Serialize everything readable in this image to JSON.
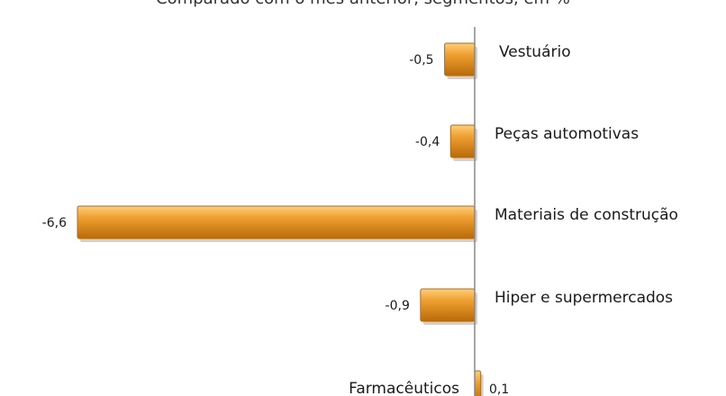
{
  "chart_data": {
    "type": "bar",
    "orientation": "horizontal",
    "subtitle": "Comparado com o mês anterior, segmentos, em %",
    "categories": [
      "Vestuário",
      "Peças automotivas",
      "Materiais de construção",
      "Hiper e supermercados",
      "Farmacêuticos"
    ],
    "values": [
      -0.5,
      -0.4,
      -6.6,
      -0.9,
      0.1
    ],
    "value_labels": [
      "-0,5",
      "-0,4",
      "-6,6",
      "-0,9",
      "0,1"
    ],
    "xlim": [
      -6.6,
      0.1
    ],
    "grid": false,
    "legend": "none",
    "bar_color": "#f0a030",
    "bar_dark": "#b86a08",
    "bar_light": "#ffcf78",
    "axis_color": "#888888"
  }
}
